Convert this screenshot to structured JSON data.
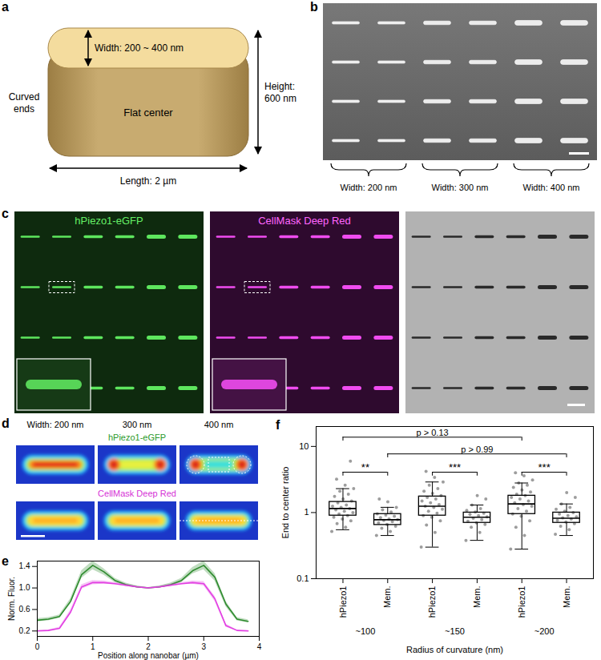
{
  "panels": [
    {
      "label": "a",
      "type": "diagram",
      "texts": {
        "width": "Width: 200 ~ 400 nm",
        "ends": "Curved ends",
        "center": "Flat center",
        "height": "Height: 600 nm",
        "length": "Length: 2 µm"
      }
    },
    {
      "label": "b",
      "type": "image",
      "column_labels": [
        "Width: 200 nm",
        "Width: 300 nm",
        "Width: 400 nm"
      ]
    },
    {
      "label": "c",
      "type": "image",
      "channel_labels": [
        "hPiezo1-eGFP",
        "CellMask Deep Red"
      ]
    },
    {
      "label": "d",
      "type": "image",
      "column_labels": [
        "Width: 200 nm",
        "300 nm",
        "400 nm"
      ],
      "row_labels": [
        "hPiezo1-eGFP",
        "CellMask Deep Red"
      ]
    }
  ],
  "chart_data": [
    {
      "type": "line",
      "panel_label": "e",
      "x_label": "Position along nanobar (µm)",
      "y_label": "Norm. Fluor.",
      "x": [
        0,
        0.2,
        0.4,
        0.6,
        0.8,
        1.0,
        1.2,
        1.4,
        1.6,
        1.8,
        2.0,
        2.2,
        2.4,
        2.6,
        2.8,
        3.0,
        3.2,
        3.4,
        3.6,
        3.8
      ],
      "series": [
        {
          "color": "#2e8b2e",
          "values": [
            0.4,
            0.42,
            0.47,
            0.75,
            1.25,
            1.42,
            1.3,
            1.14,
            1.06,
            1.02,
            1.0,
            1.02,
            1.06,
            1.14,
            1.32,
            1.42,
            1.2,
            0.7,
            0.42,
            0.38
          ],
          "errors": [
            0.03,
            0.03,
            0.03,
            0.05,
            0.07,
            0.08,
            0.06,
            0.04,
            0.03,
            0.02,
            0.01,
            0.02,
            0.03,
            0.04,
            0.06,
            0.08,
            0.07,
            0.05,
            0.03,
            0.03
          ]
        },
        {
          "color": "#e23fe2",
          "values": [
            0.2,
            0.21,
            0.25,
            0.55,
            1.02,
            1.1,
            1.1,
            1.08,
            1.05,
            1.02,
            1.0,
            1.02,
            1.05,
            1.08,
            1.1,
            1.08,
            0.8,
            0.3,
            0.21,
            0.2
          ],
          "errors": [
            0.01,
            0.01,
            0.02,
            0.04,
            0.04,
            0.04,
            0.03,
            0.02,
            0.02,
            0.01,
            0.01,
            0.01,
            0.02,
            0.02,
            0.03,
            0.04,
            0.05,
            0.03,
            0.01,
            0.01
          ]
        }
      ],
      "xlim": [
        0,
        4
      ],
      "xticks": [
        0,
        1,
        2,
        3,
        4
      ],
      "ylim": [
        0.1,
        1.5
      ],
      "yticks": [
        0.2,
        0.6,
        {
          "value": 1,
          "label": "1.0"
        },
        1.4
      ]
    },
    {
      "type": "box",
      "panel_label": "f",
      "y_label": "End to center ratio",
      "x_label": "Radius of curvature (nm)",
      "categories": [
        "hPiezo1",
        "Mem.",
        "hPiezo1",
        "Mem.",
        "hPiezo1",
        "Mem."
      ],
      "groups": [
        {
          "label": "~100",
          "from": 0,
          "to": 1
        },
        {
          "label": "~150",
          "from": 2,
          "to": 3
        },
        {
          "label": "~200",
          "from": 4,
          "to": 5
        }
      ],
      "color": "#8c8c8c",
      "boxes": [
        {
          "median": 1.15,
          "q1": 0.9,
          "q3": 1.45,
          "whisker_low": 0.55,
          "whisker_high": 2.3
        },
        {
          "median": 0.78,
          "q1": 0.65,
          "q3": 0.95,
          "whisker_low": 0.45,
          "whisker_high": 1.2
        },
        {
          "median": 1.25,
          "q1": 0.9,
          "q3": 1.75,
          "whisker_low": 0.3,
          "whisker_high": 2.9
        },
        {
          "median": 0.85,
          "q1": 0.7,
          "q3": 1.0,
          "whisker_low": 0.38,
          "whisker_high": 1.3
        },
        {
          "median": 1.35,
          "q1": 0.95,
          "q3": 1.8,
          "whisker_low": 0.28,
          "whisker_high": 2.8
        },
        {
          "median": 0.82,
          "q1": 0.7,
          "q3": 1.0,
          "whisker_low": 0.45,
          "whisker_high": 1.35
        }
      ],
      "points": [
        [
          0.52,
          0.6,
          0.68,
          0.75,
          0.8,
          0.85,
          0.9,
          0.95,
          1.0,
          1.05,
          1.1,
          1.15,
          1.2,
          1.25,
          1.3,
          1.4,
          1.5,
          1.6,
          1.75,
          1.9,
          2.1,
          2.3,
          2.6,
          3.2,
          6.0
        ],
        [
          0.45,
          0.52,
          0.58,
          0.62,
          0.66,
          0.7,
          0.73,
          0.76,
          0.78,
          0.8,
          0.84,
          0.88,
          0.92,
          0.96,
          1.02,
          1.1,
          1.2,
          1.45,
          1.6
        ],
        [
          0.3,
          0.5,
          0.65,
          0.75,
          0.85,
          0.9,
          0.98,
          1.05,
          1.12,
          1.2,
          1.25,
          1.32,
          1.4,
          1.5,
          1.6,
          1.7,
          1.8,
          1.95,
          2.1,
          2.3,
          2.6,
          2.9,
          3.4,
          4.2
        ],
        [
          0.38,
          0.5,
          0.6,
          0.66,
          0.7,
          0.74,
          0.78,
          0.82,
          0.86,
          0.9,
          0.94,
          0.98,
          1.02,
          1.08,
          1.15,
          1.3,
          1.6,
          1.8
        ],
        [
          0.28,
          0.45,
          0.6,
          0.75,
          0.88,
          0.95,
          1.05,
          1.15,
          1.25,
          1.32,
          1.4,
          1.5,
          1.6,
          1.7,
          1.8,
          1.9,
          2.05,
          2.2,
          2.4,
          2.6,
          2.8,
          3.1,
          3.6,
          4.0
        ],
        [
          0.47,
          0.55,
          0.62,
          0.68,
          0.72,
          0.76,
          0.8,
          0.83,
          0.86,
          0.9,
          0.95,
          1.0,
          1.05,
          1.12,
          1.2,
          1.35,
          1.7,
          2.0
        ]
      ],
      "annotations": [
        {
          "text": "**",
          "from": 0,
          "to": 1
        },
        {
          "text": "***",
          "from": 2,
          "to": 3
        },
        {
          "text": "***",
          "from": 4,
          "to": 5
        },
        {
          "text": "p > 0.13",
          "from": 0,
          "to": 4
        },
        {
          "text": "p > 0.99",
          "from": 1,
          "to": 5
        }
      ],
      "log": "y",
      "ylim": [
        0.1,
        20
      ],
      "yticks": [
        0.1,
        1,
        10
      ]
    }
  ]
}
